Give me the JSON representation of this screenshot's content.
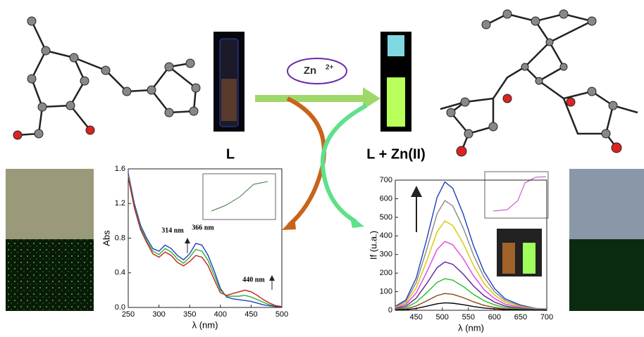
{
  "labels": {
    "ligand": "L",
    "complex": "L + Zn(II)",
    "ion": "Zn",
    "charge": "2+"
  },
  "chart_data": [
    {
      "type": "line",
      "xlabel": "λ (nm)",
      "ylabel": "Abs",
      "x": [
        250,
        260,
        270,
        280,
        290,
        300,
        310,
        320,
        330,
        340,
        350,
        360,
        370,
        380,
        390,
        400,
        410,
        420,
        430,
        440,
        450,
        460,
        470,
        480,
        490,
        500
      ],
      "series": [
        {
          "color": "#2040c0",
          "values": [
            1.55,
            1.2,
            0.95,
            0.8,
            0.68,
            0.65,
            0.72,
            0.68,
            0.6,
            0.55,
            0.62,
            0.74,
            0.72,
            0.6,
            0.42,
            0.22,
            0.12,
            0.1,
            0.09,
            0.08,
            0.07,
            0.05,
            0.03,
            0.02,
            0.01,
            0.01
          ]
        },
        {
          "color": "#30b030",
          "values": [
            1.52,
            1.17,
            0.92,
            0.77,
            0.65,
            0.61,
            0.68,
            0.64,
            0.56,
            0.51,
            0.58,
            0.67,
            0.65,
            0.54,
            0.37,
            0.2,
            0.13,
            0.13,
            0.13,
            0.14,
            0.12,
            0.09,
            0.06,
            0.03,
            0.02,
            0.01
          ]
        },
        {
          "color": "#c02020",
          "values": [
            1.5,
            1.15,
            0.9,
            0.75,
            0.62,
            0.58,
            0.64,
            0.6,
            0.52,
            0.48,
            0.53,
            0.6,
            0.58,
            0.48,
            0.32,
            0.17,
            0.14,
            0.16,
            0.18,
            0.2,
            0.18,
            0.14,
            0.09,
            0.05,
            0.02,
            0.01
          ]
        }
      ],
      "xlim": [
        250,
        500
      ],
      "xticks": [
        250,
        300,
        350,
        400,
        450,
        500
      ],
      "ylim": [
        0,
        1.6
      ],
      "yticks": [
        {
          "value": 0,
          "label": "0.0"
        },
        0.4,
        0.8,
        1.2,
        1.6
      ],
      "annotations": [
        "314 nm",
        "366 nm",
        "440 nm"
      ]
    },
    {
      "type": "line",
      "xlabel": "λ (nm)",
      "ylabel": "If (u.a.)",
      "x": [
        410,
        430,
        450,
        470,
        490,
        505,
        520,
        540,
        560,
        580,
        600,
        620,
        650,
        680,
        700
      ],
      "series": [
        {
          "color": "#1f3fbf",
          "values": [
            21,
            55,
            173,
            380,
            607,
            690,
            656,
            518,
            345,
            207,
            117,
            62,
            28,
            10,
            7
          ]
        },
        {
          "color": "#888888",
          "values": [
            18,
            47,
            148,
            325,
            519,
            590,
            561,
            443,
            295,
            177,
            100,
            53,
            24,
            9,
            6
          ]
        },
        {
          "color": "#d8c800",
          "values": [
            14,
            38,
            120,
            264,
            422,
            480,
            456,
            360,
            240,
            144,
            82,
            43,
            19,
            7,
            5
          ]
        },
        {
          "color": "#e040e0",
          "values": [
            11,
            30,
            93,
            204,
            326,
            370,
            352,
            278,
            185,
            111,
            63,
            33,
            15,
            6,
            4
          ]
        },
        {
          "color": "#6020a0",
          "values": [
            8,
            21,
            65,
            143,
            229,
            260,
            247,
            195,
            130,
            78,
            44,
            23,
            10,
            4,
            3
          ]
        },
        {
          "color": "#20c020",
          "values": [
            5,
            14,
            43,
            94,
            150,
            170,
            162,
            128,
            85,
            51,
            29,
            15,
            7,
            3,
            2
          ]
        },
        {
          "color": "#8b4513",
          "values": [
            3,
            7,
            23,
            50,
            79,
            90,
            86,
            68,
            45,
            27,
            15,
            8,
            4,
            1,
            1
          ]
        },
        {
          "color": "#000000",
          "values": [
            1,
            3,
            10,
            22,
            35,
            40,
            38,
            30,
            20,
            12,
            7,
            4,
            2,
            1,
            0
          ]
        }
      ],
      "xlim": [
        410,
        700
      ],
      "xticks": [
        450,
        500,
        550,
        600,
        650,
        700
      ],
      "ylim": [
        0,
        700
      ],
      "yticks": [
        0,
        100,
        200,
        300,
        400,
        500,
        600,
        700
      ]
    }
  ]
}
